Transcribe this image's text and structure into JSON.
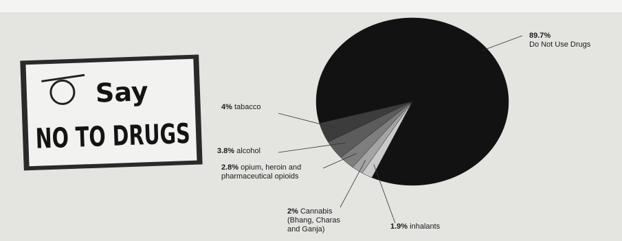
{
  "sign": {
    "line1": "Say",
    "line2": "NO TO DRUGS"
  },
  "chart_data": {
    "type": "pie",
    "categories": [
      "Do Not Use Drugs",
      "tabacco",
      "alcohol",
      "opium, heroin and pharmaceutical opioids",
      "Cannabis (Bhang, Charas and Ganja)",
      "inhalants"
    ],
    "values": [
      89.7,
      4,
      3.8,
      2.8,
      2,
      1.9
    ],
    "value_labels": [
      "89.7%",
      "4%",
      "3.8%",
      "2.8%",
      "2%",
      "1.9%"
    ],
    "colors": [
      "#121212",
      "#3c3c3c",
      "#5c5c5c",
      "#7e7e7e",
      "#a4a4a4",
      "#cacaca"
    ]
  }
}
